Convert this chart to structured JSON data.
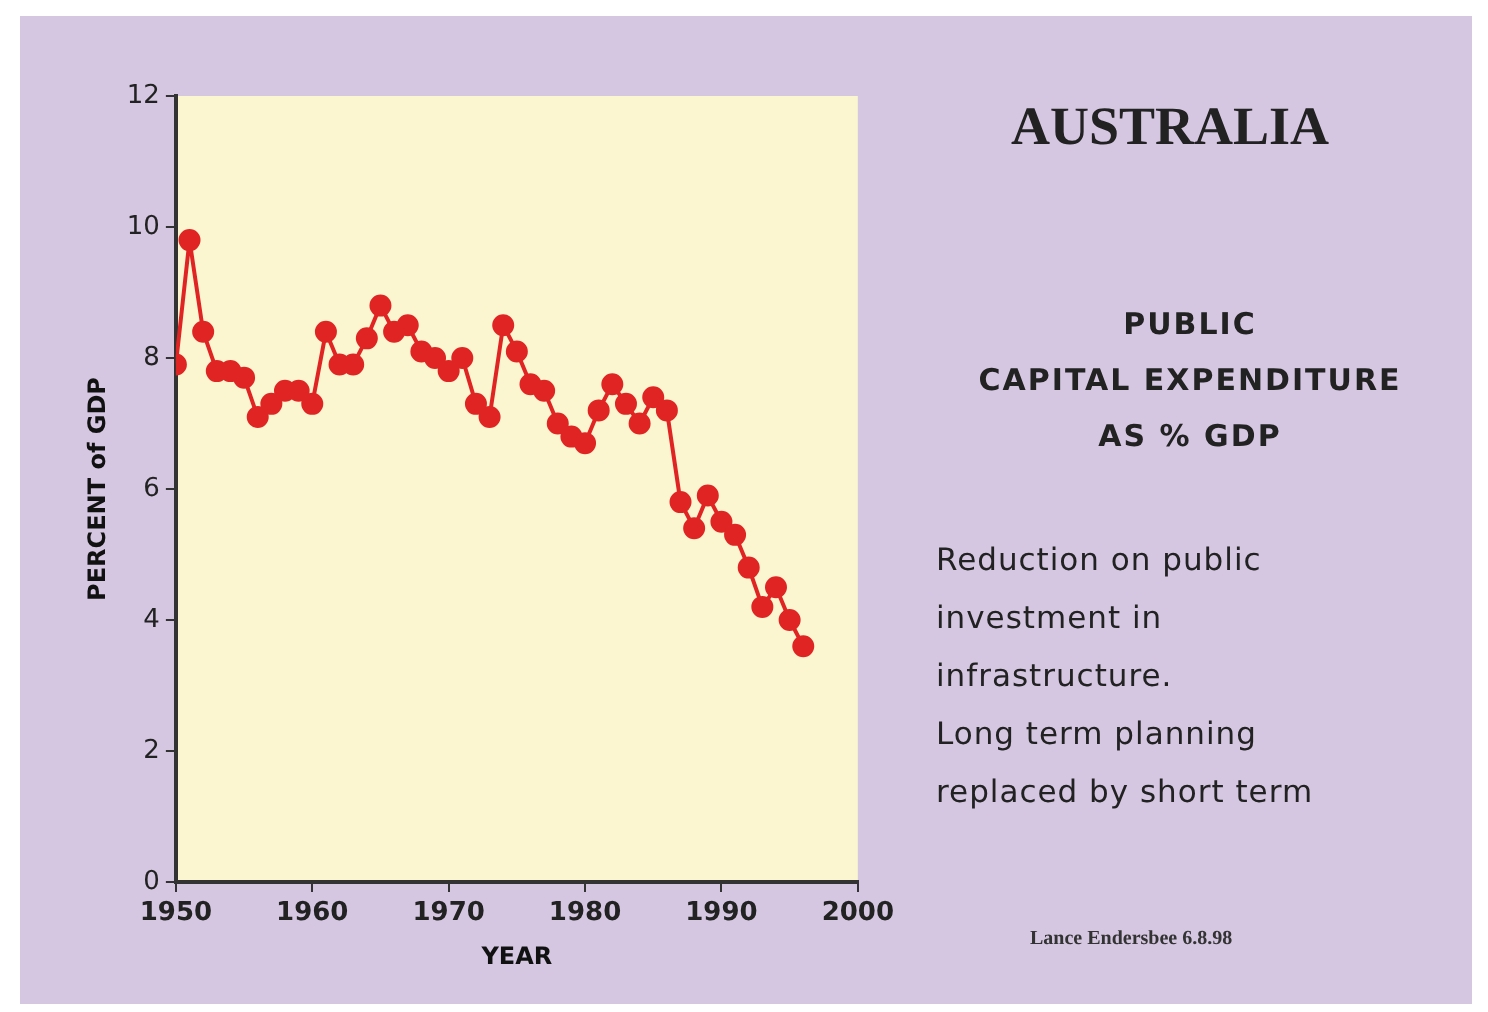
{
  "chart_data": {
    "type": "line",
    "title": "AUSTRALIA",
    "subtitle": "PUBLIC\nCAPITAL EXPENDITURE\nAS % GDP",
    "xlabel": "YEAR",
    "ylabel": "PERCENT of GDP",
    "annotations": [
      "Reduction on public\ninvestment in\ninfrastructure.\nLong term planning\nreplaced by short term",
      "Lance Endersbee 6.8.98"
    ],
    "x": [
      1950,
      1951,
      1952,
      1953,
      1954,
      1955,
      1956,
      1957,
      1958,
      1959,
      1960,
      1961,
      1962,
      1963,
      1964,
      1965,
      1966,
      1967,
      1968,
      1969,
      1970,
      1971,
      1972,
      1973,
      1974,
      1975,
      1976,
      1977,
      1978,
      1979,
      1980,
      1981,
      1982,
      1983,
      1984,
      1985,
      1986,
      1987,
      1988,
      1989,
      1990,
      1991,
      1992,
      1993,
      1994,
      1995,
      1996
    ],
    "series": [
      {
        "color": "#e02424",
        "values": [
          7.9,
          9.8,
          8.4,
          7.8,
          7.8,
          7.7,
          7.1,
          7.3,
          7.5,
          7.5,
          7.3,
          8.4,
          7.9,
          7.9,
          8.3,
          8.8,
          8.4,
          8.5,
          8.1,
          8.0,
          7.8,
          8.0,
          7.3,
          7.1,
          8.5,
          8.1,
          7.6,
          7.5,
          7.0,
          6.8,
          6.7,
          7.2,
          7.6,
          7.3,
          7.0,
          7.4,
          7.2,
          5.8,
          5.4,
          5.9,
          5.5,
          5.3,
          4.8,
          4.2,
          4.5,
          4.0,
          3.6
        ]
      }
    ],
    "xlim": [
      1950,
      2000
    ],
    "xticks": [
      1950,
      1960,
      1970,
      1980,
      1990,
      2000
    ],
    "ylim": [
      0,
      12
    ],
    "yticks": [
      0,
      2,
      4,
      6,
      8,
      10,
      12
    ],
    "grid": false,
    "legend": false,
    "marker": "circle",
    "line_style": "solid"
  }
}
